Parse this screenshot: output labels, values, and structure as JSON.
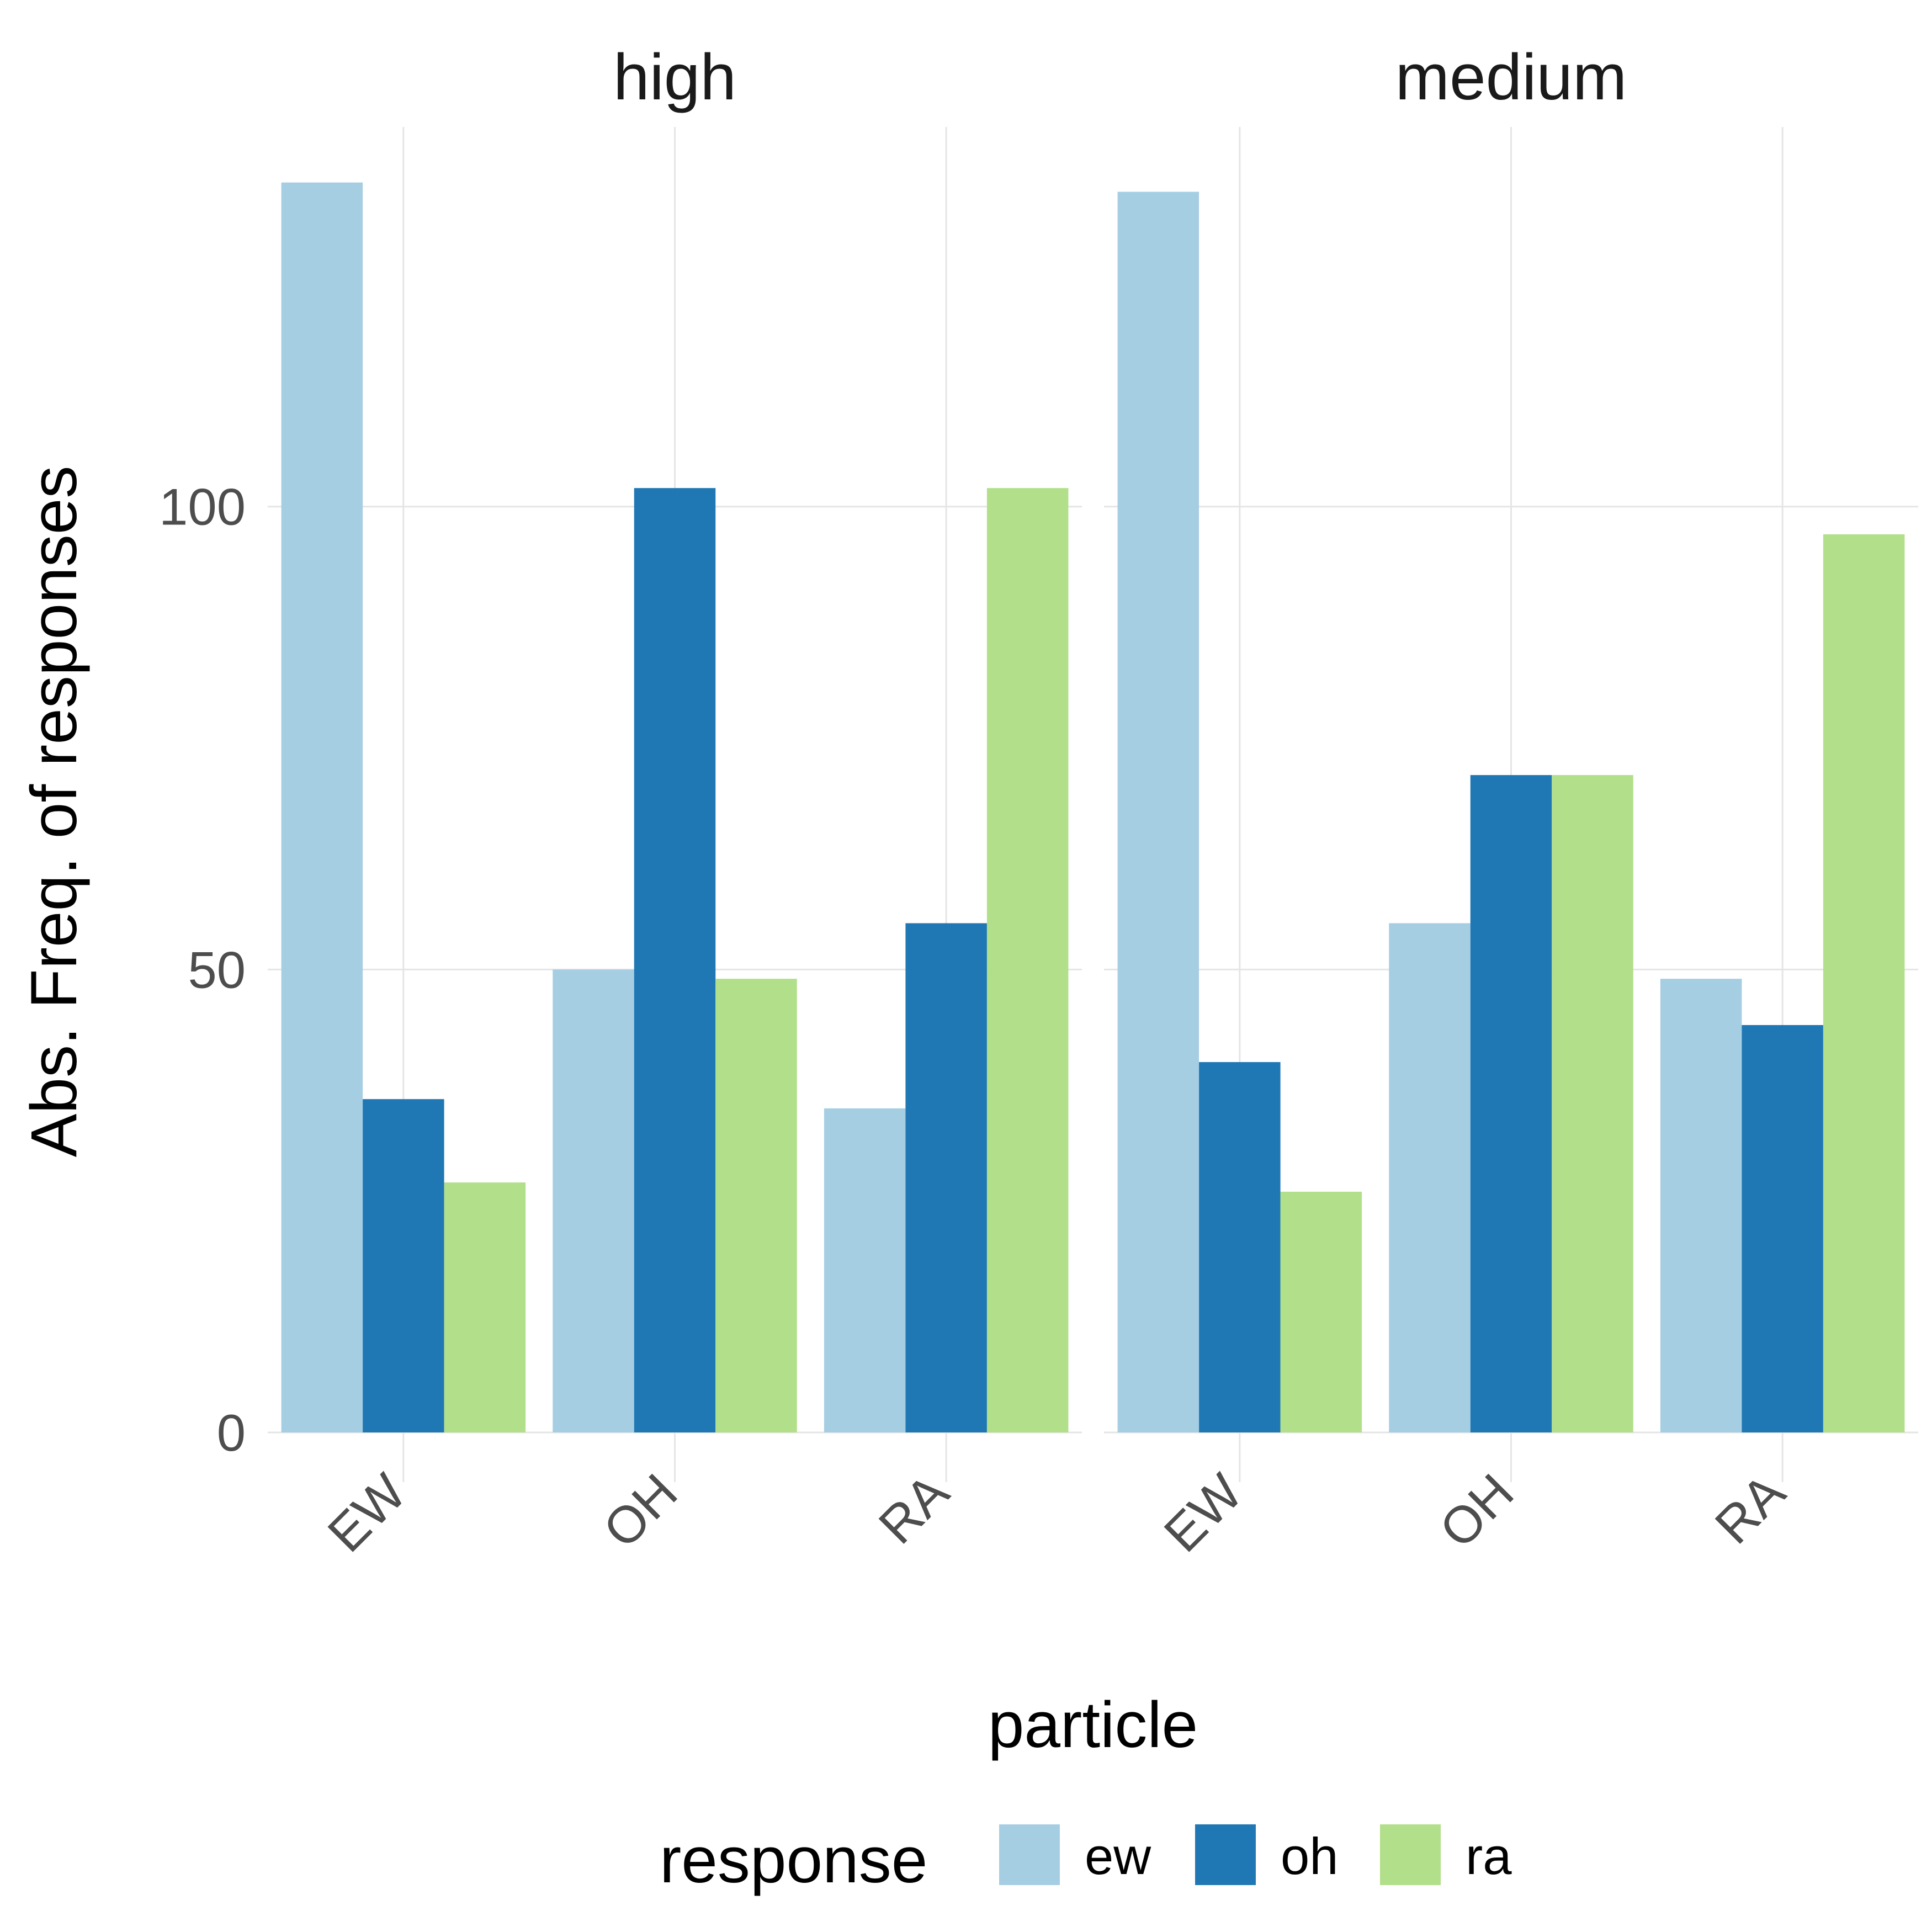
{
  "chart_data": {
    "type": "bar",
    "facets": [
      {
        "title": "high",
        "categories": [
          "EW",
          "OH",
          "RA"
        ],
        "series": [
          {
            "name": "ew",
            "values": [
              135,
              50,
              35
            ]
          },
          {
            "name": "oh",
            "values": [
              36,
              102,
              55
            ]
          },
          {
            "name": "ra",
            "values": [
              27,
              49,
              102
            ]
          }
        ]
      },
      {
        "title": "medium",
        "categories": [
          "EW",
          "OH",
          "RA"
        ],
        "series": [
          {
            "name": "ew",
            "values": [
              134,
              55,
              49
            ]
          },
          {
            "name": "oh",
            "values": [
              40,
              71,
              44
            ]
          },
          {
            "name": "ra",
            "values": [
              26,
              71,
              97
            ]
          }
        ]
      }
    ],
    "xlabel": "particle",
    "ylabel": "Abs. Freq. of responses",
    "ylim": [
      0,
      141
    ],
    "yticks": [
      0,
      50,
      100
    ],
    "grid": true,
    "legend": {
      "title": "response",
      "position": "bottom",
      "entries": [
        {
          "label": "ew",
          "color": "#a6cee3"
        },
        {
          "label": "oh",
          "color": "#1f78b4"
        },
        {
          "label": "ra",
          "color": "#b2df8a"
        }
      ]
    }
  }
}
